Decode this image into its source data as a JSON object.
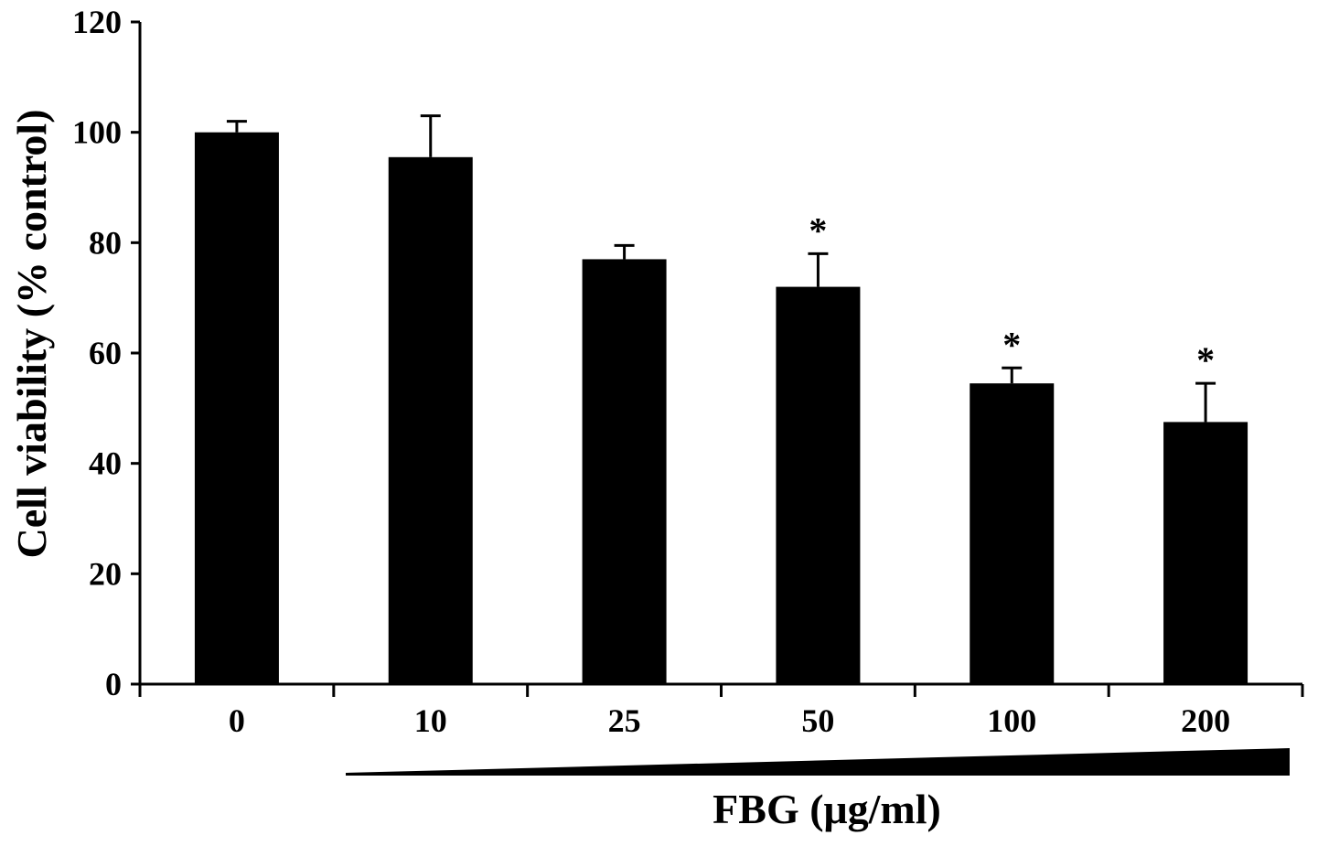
{
  "chart_data": {
    "type": "bar",
    "title": "",
    "xlabel": "FBG (μg/ml)",
    "ylabel": "Cell viability (% control)",
    "categories": [
      "0",
      "10",
      "25",
      "50",
      "100",
      "200"
    ],
    "values": [
      100,
      95.5,
      77,
      72,
      54.5,
      47.5
    ],
    "error_bars_upper": [
      2,
      7.5,
      2.5,
      6,
      2.8,
      7
    ],
    "significance": [
      "",
      "",
      "",
      "*",
      "*",
      "*"
    ],
    "ylim": [
      0,
      120
    ],
    "yticks": [
      "0",
      "20",
      "40",
      "60",
      "80",
      "100",
      "120"
    ],
    "grid": false,
    "legend": "none",
    "bar_color": "#000000",
    "concentration_wedge": "increasing"
  }
}
